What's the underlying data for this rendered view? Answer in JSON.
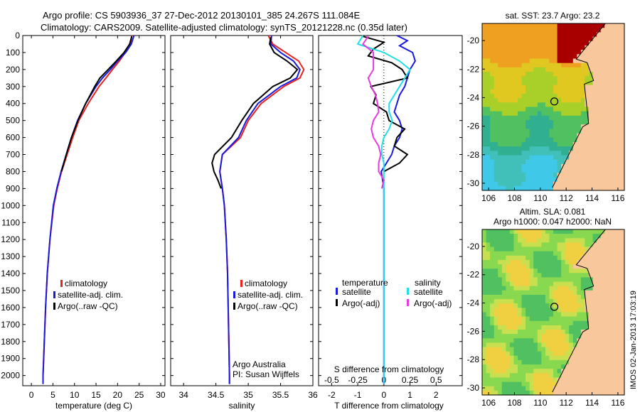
{
  "header": {
    "line1": "Argo profile: CS 5903936_37 27-Dec-2012 20130101_385 24.267S 111.084E",
    "line2": "Climatology: CARS2009. Satellite-adjusted climatology: synTS_20121228.nc (0.35d later)"
  },
  "colors": {
    "climatology": "#e8231f",
    "satellite": "#1a1adc",
    "argo": "#000000",
    "sal_satellite": "#22dfe6",
    "sal_argo": "#e83ae0",
    "land": "#f8c89c",
    "hot": "#a80000"
  },
  "chart_data": [
    {
      "type": "line",
      "id": "temperature",
      "xlabel": "temperature (deg C)",
      "ylabel": "",
      "xlim": [
        -2,
        31
      ],
      "ylim": [
        2060,
        0
      ],
      "xticks": [
        "0",
        "5",
        "10",
        "15",
        "20",
        "25",
        "30"
      ],
      "yticks": [
        "0",
        "100",
        "200",
        "300",
        "400",
        "500",
        "600",
        "700",
        "800",
        "900",
        "1000",
        "1100",
        "1200",
        "1300",
        "1400",
        "1500",
        "1600",
        "1700",
        "1800",
        "1900",
        "2000"
      ],
      "legend": [
        "climatology",
        "satellite-adj. clim.",
        "Argo(..raw -QC)"
      ],
      "series": [
        {
          "name": "climatology",
          "depth": [
            0,
            50,
            100,
            150,
            200,
            250,
            300,
            400,
            500,
            600,
            700,
            800,
            900,
            1000,
            1200,
            1400,
            1600,
            1800,
            2000,
            2050
          ],
          "values": [
            23.3,
            23.0,
            21.8,
            20.4,
            18.8,
            17.3,
            15.7,
            13.2,
            11.0,
            9.6,
            8.3,
            7.0,
            6.0,
            5.2,
            4.3,
            3.7,
            3.3,
            3.0,
            2.7,
            2.7
          ]
        },
        {
          "name": "satellite-adj. clim.",
          "depth": [
            0,
            50,
            100,
            150,
            200,
            250,
            300,
            400,
            500,
            600,
            700,
            800,
            900,
            1000,
            1200,
            1400,
            1600,
            1800,
            2000,
            2050
          ],
          "values": [
            23.8,
            23.2,
            21.9,
            20.0,
            18.3,
            16.5,
            15.0,
            12.6,
            10.7,
            9.3,
            8.1,
            6.9,
            5.9,
            5.1,
            4.3,
            3.7,
            3.3,
            3.0,
            2.7,
            2.7
          ]
        },
        {
          "name": "Argo(..raw -QC)",
          "depth": [
            5,
            50,
            100,
            150,
            200,
            250,
            300,
            400,
            500,
            600,
            700,
            800
          ],
          "values": [
            23.3,
            22.8,
            21.5,
            19.7,
            17.8,
            15.9,
            14.7,
            12.6,
            10.8,
            9.3,
            8.1,
            7.0
          ]
        }
      ]
    },
    {
      "type": "line",
      "id": "salinity",
      "xlabel": "salinity",
      "ylabel": "",
      "xlim": [
        33.8,
        36.0
      ],
      "ylim": [
        2060,
        0
      ],
      "xticks": [
        "34",
        "34.5",
        "35",
        "35.5",
        "36"
      ],
      "legend": [
        "climatology",
        "satellite-adj. clim.",
        "Argo(..raw -QC)"
      ],
      "annotation": [
        "Argo Australia",
        "PI: Susan Wijffels"
      ],
      "series": [
        {
          "name": "climatology",
          "depth": [
            0,
            50,
            100,
            150,
            200,
            250,
            300,
            400,
            500,
            600,
            700,
            800,
            900,
            1000,
            1200,
            1400,
            1600,
            1800,
            2000,
            2050
          ],
          "values": [
            35.31,
            35.38,
            35.58,
            35.78,
            35.86,
            35.8,
            35.55,
            35.2,
            35.0,
            34.88,
            34.6,
            34.56,
            34.6,
            34.63,
            34.66,
            34.68,
            34.69,
            34.7,
            34.71,
            34.71
          ]
        },
        {
          "name": "satellite-adj. clim.",
          "depth": [
            0,
            50,
            100,
            150,
            200,
            250,
            300,
            400,
            500,
            600,
            700,
            800,
            900,
            1000,
            1200,
            1400,
            1600,
            1800,
            2000,
            2050
          ],
          "values": [
            35.36,
            35.35,
            35.5,
            35.7,
            35.8,
            35.75,
            35.5,
            35.15,
            34.97,
            34.85,
            34.6,
            34.56,
            34.6,
            34.63,
            34.66,
            34.68,
            34.69,
            34.7,
            34.71,
            34.71
          ]
        },
        {
          "name": "Argo(..raw -QC)",
          "depth": [
            10,
            50,
            100,
            150,
            200,
            250,
            300,
            400,
            500,
            600,
            700,
            750,
            800,
            850,
            900
          ],
          "values": [
            35.35,
            35.33,
            35.4,
            35.6,
            35.76,
            35.65,
            35.38,
            35.08,
            34.9,
            34.74,
            34.48,
            34.44,
            34.47,
            34.53,
            34.58
          ]
        }
      ]
    },
    {
      "type": "line",
      "id": "difference",
      "xlabel_bottom": "T difference from climatology",
      "xlabel_top": "S difference from climatology",
      "xlim_T": [
        -2.5,
        3
      ],
      "xticks_T": [
        "-2",
        "-1",
        "0",
        "1",
        "2"
      ],
      "xticks_S": [
        "-0.5",
        "-0.25",
        "0",
        "0.25",
        "0.5"
      ],
      "ylim": [
        2060,
        0
      ],
      "legend_temperature": {
        "title": "temperature",
        "items": [
          "satellite",
          "Argo(-adj)"
        ]
      },
      "legend_salinity": {
        "title": "salinity",
        "items": [
          "satellite",
          "Argo(-adj)"
        ]
      },
      "series": [
        {
          "name": "temperature satellite",
          "depth": [
            0,
            30,
            60,
            100,
            150,
            200,
            250,
            300,
            350,
            400,
            450,
            500,
            550,
            600,
            650,
            700,
            750,
            800,
            850,
            900,
            950,
            1000,
            1100,
            1200,
            1400,
            1600,
            1800,
            2000,
            2050
          ],
          "values": [
            0.5,
            0.9,
            0.6,
            1.1,
            1.2,
            1.0,
            0.9,
            0.8,
            0.6,
            0.5,
            0.4,
            0.6,
            0.7,
            0.6,
            0.4,
            0.3,
            0.1,
            -0.1,
            -0.05,
            0.0,
            0.0,
            0.0,
            0.0,
            0.0,
            0.0,
            0.0,
            0.0,
            0.0,
            0.0
          ]
        },
        {
          "name": "temperature Argo(-adj)",
          "depth": [
            5,
            40,
            80,
            120,
            160,
            200,
            250,
            300,
            350,
            400,
            450,
            500,
            550,
            600,
            650,
            700,
            750,
            800
          ],
          "values": [
            -0.8,
            0.0,
            -0.4,
            -0.6,
            0.3,
            0.7,
            0.9,
            -0.5,
            -0.3,
            -0.4,
            0.1,
            0.2,
            0.8,
            0.5,
            0.4,
            0.9,
            0.6,
            0.0
          ]
        },
        {
          "name": "salinity satellite",
          "depth": [
            0,
            50,
            100,
            150,
            200,
            250,
            300,
            350,
            400,
            450,
            500,
            550,
            600,
            650,
            700,
            750,
            800,
            850,
            900,
            950,
            1000,
            1100,
            1200,
            1300,
            1400,
            1500,
            1600,
            1800,
            2000,
            2050
          ],
          "values": [
            -0.2,
            -0.25,
            0.0,
            0.15,
            0.25,
            0.2,
            0.15,
            0.1,
            0.05,
            0.05,
            0.08,
            0.05,
            0.0,
            -0.02,
            -0.02,
            0.0,
            0.0,
            0.0,
            0.0,
            0.0,
            0.0,
            0.0,
            0.0,
            0.0,
            0.0,
            0.0,
            0.0,
            0.0,
            0.0,
            0.0
          ]
        },
        {
          "name": "salinity Argo(-adj)",
          "depth": [
            5,
            50,
            100,
            150,
            200,
            250,
            300,
            350,
            400,
            450,
            500,
            550,
            600,
            650,
            700,
            750,
            800,
            850,
            900
          ],
          "values": [
            -0.15,
            -0.2,
            -0.1,
            -0.1,
            -0.1,
            -0.15,
            -0.12,
            -0.08,
            -0.06,
            -0.05,
            -0.1,
            -0.12,
            -0.1,
            -0.05,
            -0.03,
            -0.05,
            -0.05,
            0.0,
            -0.02
          ]
        }
      ]
    },
    {
      "type": "heatmap",
      "id": "sst_map",
      "title": "sat. SST: 23.7 Argo: 23.2",
      "xlim": [
        105.5,
        116.5
      ],
      "ylim": [
        -30.5,
        -18.8
      ],
      "xticks": [
        "106",
        "108",
        "110",
        "112",
        "114",
        "116"
      ],
      "yticks": [
        "-20",
        "-22",
        "-24",
        "-26",
        "-28",
        "-30"
      ],
      "marker": {
        "lon": 111.084,
        "lat": -24.267
      }
    },
    {
      "type": "heatmap",
      "id": "sla_map",
      "title_line1": "Altim. SLA: 0.081",
      "title_line2": "Argo h1000: 0.047 h2000: NaN",
      "xlim": [
        105.5,
        116.5
      ],
      "ylim": [
        -30.5,
        -18.8
      ],
      "xticks": [
        "106",
        "108",
        "110",
        "112",
        "114",
        "116"
      ],
      "yticks": [
        "-20",
        "-22",
        "-24",
        "-26",
        "-28",
        "-30"
      ],
      "marker": {
        "lon": 111.084,
        "lat": -24.267
      }
    }
  ],
  "stamp": "IMOS 02-Jan-2013 17:03:19"
}
